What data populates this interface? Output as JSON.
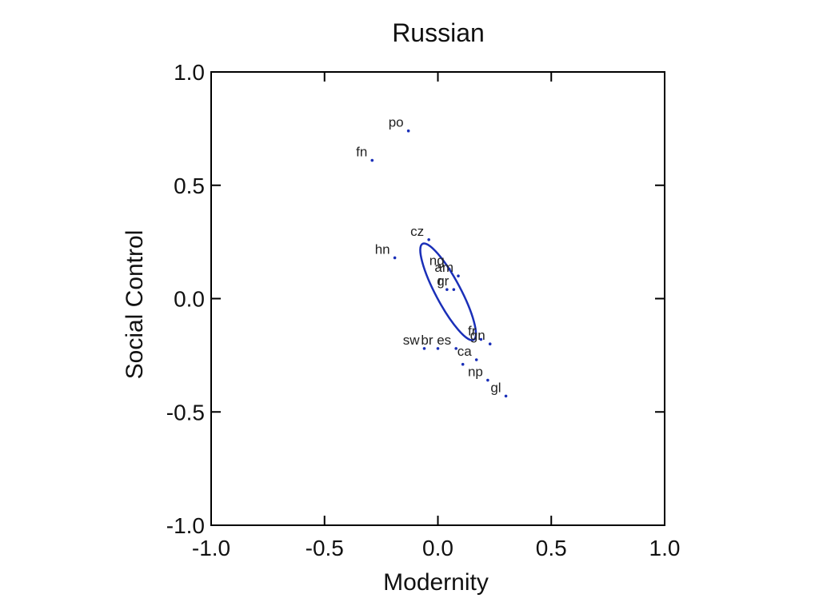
{
  "chart_data": {
    "type": "scatter",
    "title": "Russian",
    "xlabel": "Modernity",
    "ylabel": "Social Control",
    "xlim": [
      -1.0,
      1.0
    ],
    "ylim": [
      -1.0,
      1.0
    ],
    "xticks": [
      "-1.0",
      "-0.5",
      "0.0",
      "0.5",
      "1.0"
    ],
    "yticks": [
      "-1.0",
      "-0.5",
      "0.0",
      "0.5",
      "1.0"
    ],
    "grid": false,
    "points": [
      {
        "label": "po",
        "x": -0.13,
        "y": 0.74
      },
      {
        "label": "fn",
        "x": -0.29,
        "y": 0.61
      },
      {
        "label": "cz",
        "x": -0.04,
        "y": 0.26
      },
      {
        "label": "hn",
        "x": -0.19,
        "y": 0.18
      },
      {
        "label": "ng",
        "x": 0.05,
        "y": 0.13
      },
      {
        "label": "am",
        "x": 0.09,
        "y": 0.1
      },
      {
        "label": "r",
        "x": 0.04,
        "y": 0.04
      },
      {
        "label": "gr",
        "x": 0.07,
        "y": 0.04
      },
      {
        "label": "fr",
        "x": 0.19,
        "y": -0.18
      },
      {
        "label": "gn",
        "x": 0.23,
        "y": -0.2
      },
      {
        "label": "sw",
        "x": -0.06,
        "y": -0.22
      },
      {
        "label": "br",
        "x": 0.0,
        "y": -0.22
      },
      {
        "label": "es",
        "x": 0.08,
        "y": -0.22
      },
      {
        "label": "ca",
        "x": 0.17,
        "y": -0.27
      },
      {
        "label": "",
        "x": 0.11,
        "y": -0.29
      },
      {
        "label": "np",
        "x": 0.22,
        "y": -0.36
      },
      {
        "label": "gl",
        "x": 0.3,
        "y": -0.43
      }
    ],
    "ellipse": {
      "cx": 0.045,
      "cy": 0.03,
      "rx": 0.24,
      "ry": 0.055,
      "angle_deg": -62
    },
    "colors": {
      "points": "#1a2fb8",
      "ellipse": "#1a2fb8",
      "frame": "#000000"
    }
  }
}
